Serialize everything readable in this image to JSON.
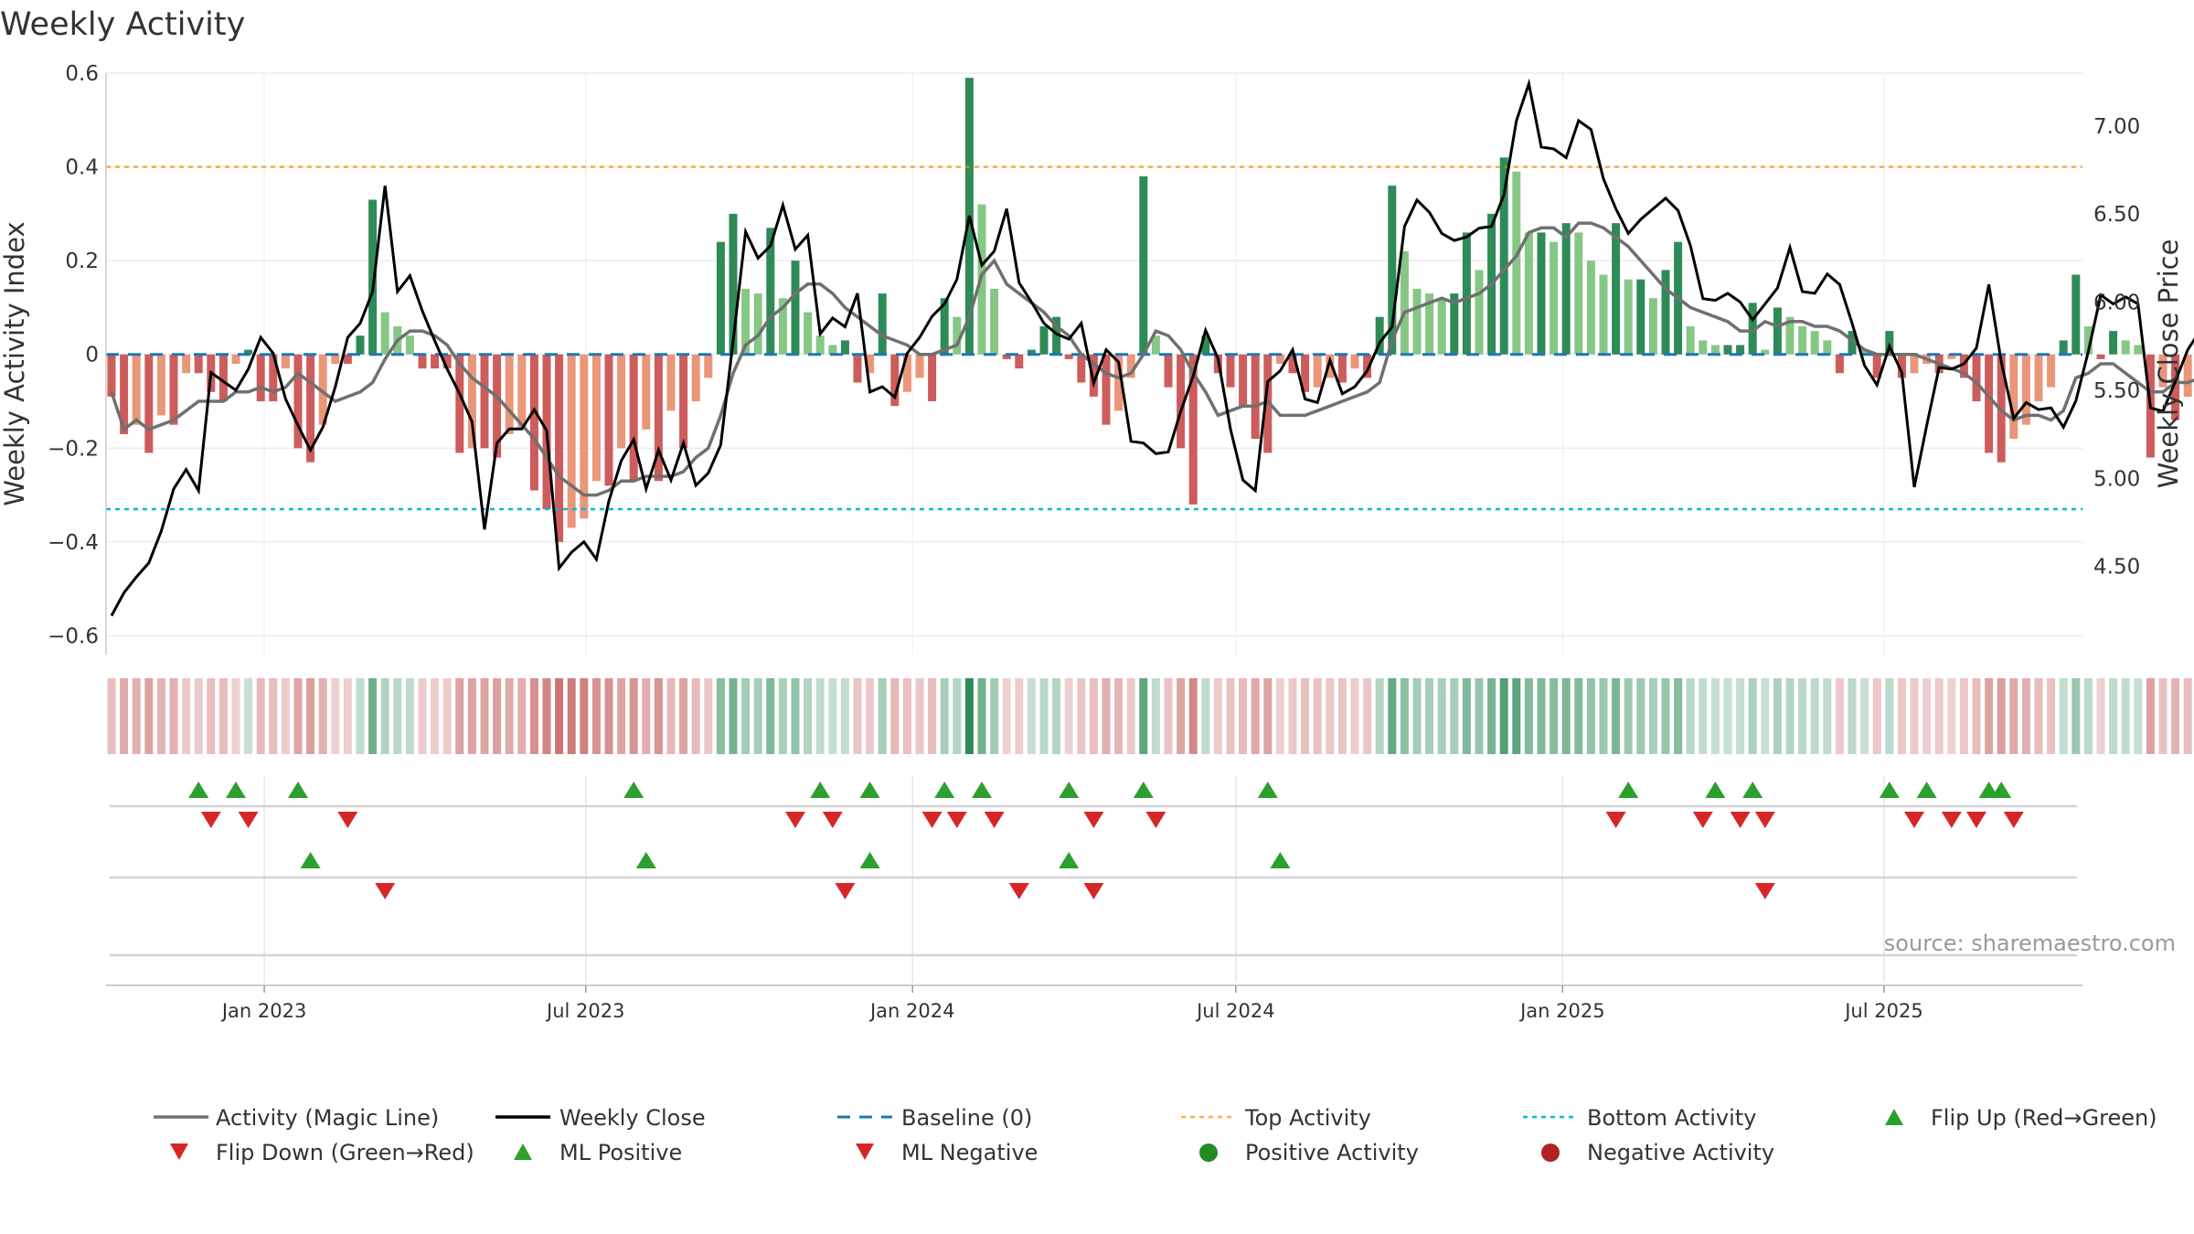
{
  "chart_data": {
    "type": "bar",
    "title": "Weekly Activity",
    "ylabel": "Weekly Activity Index",
    "y2label": "Weekly Close Price",
    "source": "source: sharemaestro.com",
    "ylim": [
      -0.64,
      0.6
    ],
    "y_ticks": [
      "0.6",
      "0.4",
      "0.2",
      "0",
      "−0.2",
      "−0.4",
      "−0.6"
    ],
    "y_tick_values": [
      0.6,
      0.4,
      0.2,
      0,
      -0.2,
      -0.4,
      -0.6
    ],
    "y2lim": [
      4.0,
      7.3
    ],
    "y2_ticks": [
      "7.00",
      "6.50",
      "6.00",
      "5.50",
      "5.00",
      "4.50"
    ],
    "y2_tick_values": [
      7.0,
      6.5,
      6.0,
      5.5,
      5.0,
      4.5
    ],
    "x_start": "2022-10-07",
    "x_tick_labels": [
      "Jan 2023",
      "Jul 2023",
      "Jan 2024",
      "Jul 2024",
      "Jan 2025",
      "Jul 2025"
    ],
    "x_tick_dates": [
      "2023-01-01",
      "2023-07-01",
      "2024-01-01",
      "2024-07-01",
      "2025-01-01",
      "2025-07-01"
    ],
    "top_activity": 0.4,
    "bottom_activity": -0.33,
    "grid": true,
    "colors": {
      "strong_pos": "#2e8b57",
      "weak_pos": "#86c786",
      "strong_neg": "#cd5c5c",
      "weak_neg": "#e9967a",
      "close_line": "#000000",
      "magic_line": "#707070",
      "baseline": "#1f77b4",
      "top": "#ff8c00",
      "bottom": "#00bcd4",
      "flip_up": "#2ca02c",
      "flip_down": "#d62728",
      "pos_dot": "#228b22",
      "neg_dot": "#b22222"
    },
    "activity": [
      -0.09,
      -0.17,
      -0.15,
      -0.21,
      -0.13,
      -0.15,
      -0.04,
      -0.04,
      -0.08,
      -0.1,
      -0.02,
      0.01,
      -0.1,
      -0.1,
      -0.03,
      -0.2,
      -0.23,
      -0.15,
      -0.02,
      -0.02,
      0.04,
      0.33,
      0.09,
      0.06,
      0.04,
      -0.03,
      -0.03,
      -0.03,
      -0.21,
      -0.2,
      -0.2,
      -0.22,
      -0.17,
      -0.16,
      -0.29,
      -0.33,
      -0.4,
      -0.37,
      -0.35,
      -0.27,
      -0.28,
      -0.2,
      -0.27,
      -0.16,
      -0.27,
      -0.12,
      -0.2,
      -0.1,
      -0.05,
      0.24,
      0.3,
      0.14,
      0.13,
      0.27,
      0.12,
      0.2,
      0.09,
      0.04,
      0.02,
      0.03,
      -0.06,
      -0.04,
      0.13,
      -0.11,
      -0.08,
      -0.05,
      -0.1,
      0.12,
      0.08,
      0.59,
      0.32,
      0.14,
      -0.01,
      -0.03,
      0.01,
      0.06,
      0.08,
      -0.01,
      -0.06,
      -0.09,
      -0.15,
      -0.12,
      -0.05,
      0.38,
      0.04,
      -0.07,
      -0.2,
      -0.32,
      0.04,
      -0.04,
      -0.07,
      -0.11,
      -0.18,
      -0.21,
      -0.02,
      -0.04,
      -0.08,
      -0.07,
      -0.05,
      -0.06,
      -0.03,
      -0.05,
      0.08,
      0.36,
      0.22,
      0.14,
      0.13,
      0.12,
      0.13,
      0.26,
      0.18,
      0.3,
      0.42,
      0.39,
      0.26,
      0.26,
      0.24,
      0.28,
      0.26,
      0.2,
      0.17,
      0.28,
      0.16,
      0.16,
      0.12,
      0.18,
      0.24,
      0.06,
      0.03,
      0.02,
      0.02,
      0.02,
      0.11,
      0.01,
      0.1,
      0.08,
      0.06,
      0.05,
      0.03,
      -0.04,
      0.05,
      0.01,
      -0.05,
      0.05,
      -0.05,
      -0.04,
      -0.02,
      -0.04,
      -0.01,
      -0.05,
      -0.1,
      -0.21,
      -0.23,
      -0.18,
      -0.15,
      -0.1,
      -0.07,
      0.03,
      0.17,
      0.06,
      -0.01,
      0.05,
      0.03,
      0.02,
      -0.22,
      -0.07,
      -0.14,
      -0.09,
      -0.05,
      0.03,
      -0.02,
      0.03,
      -0.02,
      -0.01
    ],
    "magic_line": [
      -0.08,
      -0.16,
      -0.14,
      -0.16,
      -0.15,
      -0.14,
      -0.12,
      -0.1,
      -0.1,
      -0.1,
      -0.08,
      -0.08,
      -0.07,
      -0.08,
      -0.07,
      -0.04,
      -0.06,
      -0.08,
      -0.1,
      -0.09,
      -0.08,
      -0.06,
      -0.01,
      0.03,
      0.05,
      0.05,
      0.04,
      0.02,
      -0.02,
      -0.05,
      -0.07,
      -0.09,
      -0.12,
      -0.15,
      -0.18,
      -0.22,
      -0.26,
      -0.28,
      -0.3,
      -0.3,
      -0.29,
      -0.27,
      -0.27,
      -0.26,
      -0.26,
      -0.26,
      -0.25,
      -0.22,
      -0.2,
      -0.13,
      -0.04,
      0.02,
      0.04,
      0.08,
      0.1,
      0.13,
      0.15,
      0.15,
      0.13,
      0.1,
      0.08,
      0.06,
      0.04,
      0.03,
      0.02,
      0.0,
      0.0,
      0.01,
      0.02,
      0.08,
      0.17,
      0.2,
      0.15,
      0.13,
      0.11,
      0.09,
      0.06,
      0.04,
      0.0,
      -0.02,
      -0.04,
      -0.05,
      -0.04,
      0.0,
      0.05,
      0.04,
      0.01,
      -0.04,
      -0.08,
      -0.13,
      -0.12,
      -0.11,
      -0.11,
      -0.1,
      -0.13,
      -0.13,
      -0.13,
      -0.12,
      -0.11,
      -0.1,
      -0.09,
      -0.08,
      -0.06,
      0.03,
      0.09,
      0.1,
      0.11,
      0.12,
      0.11,
      0.12,
      0.13,
      0.15,
      0.18,
      0.21,
      0.26,
      0.27,
      0.27,
      0.25,
      0.28,
      0.28,
      0.27,
      0.25,
      0.23,
      0.2,
      0.17,
      0.14,
      0.12,
      0.1,
      0.09,
      0.08,
      0.07,
      0.05,
      0.05,
      0.07,
      0.06,
      0.07,
      0.07,
      0.06,
      0.06,
      0.05,
      0.03,
      0.01,
      0.0,
      0.0,
      0.0,
      0.0,
      -0.01,
      -0.02,
      -0.03,
      -0.04,
      -0.06,
      -0.09,
      -0.12,
      -0.14,
      -0.13,
      -0.13,
      -0.14,
      -0.12,
      -0.05,
      -0.04,
      -0.02,
      -0.02,
      -0.04,
      -0.06,
      -0.08,
      -0.08,
      -0.06,
      -0.06,
      -0.05,
      -0.03,
      -0.03,
      -0.03
    ],
    "weekly_close": [
      4.22,
      4.35,
      4.44,
      4.52,
      4.7,
      4.94,
      5.05,
      4.93,
      5.6,
      5.55,
      5.5,
      5.62,
      5.8,
      5.71,
      5.45,
      5.3,
      5.16,
      5.29,
      5.52,
      5.8,
      5.88,
      6.06,
      6.66,
      6.06,
      6.15,
      5.95,
      5.78,
      5.62,
      5.48,
      5.32,
      4.71,
      5.2,
      5.28,
      5.28,
      5.39,
      5.27,
      4.49,
      4.58,
      4.64,
      4.54,
      4.87,
      5.1,
      5.22,
      4.94,
      5.16,
      4.99,
      5.2,
      4.96,
      5.03,
      5.19,
      5.78,
      6.4,
      6.25,
      6.32,
      6.55,
      6.3,
      6.38,
      5.82,
      5.91,
      5.86,
      6.05,
      5.49,
      5.52,
      5.46,
      5.71,
      5.8,
      5.92,
      5.99,
      6.13,
      6.49,
      6.21,
      6.29,
      6.53,
      6.11,
      6.0,
      5.88,
      5.82,
      5.79,
      5.88,
      5.54,
      5.73,
      5.66,
      5.21,
      5.2,
      5.14,
      5.15,
      5.38,
      5.58,
      5.84,
      5.68,
      5.28,
      4.99,
      4.93,
      5.55,
      5.61,
      5.73,
      5.45,
      5.43,
      5.67,
      5.48,
      5.52,
      5.61,
      5.77,
      5.86,
      6.43,
      6.58,
      6.51,
      6.39,
      6.35,
      6.37,
      6.42,
      6.43,
      6.61,
      7.03,
      7.24,
      6.88,
      6.87,
      6.82,
      7.03,
      6.98,
      6.7,
      6.53,
      6.39,
      6.47,
      6.53,
      6.59,
      6.52,
      6.32,
      6.02,
      6.01,
      6.05,
      6.0,
      5.9,
      5.99,
      6.08,
      6.31,
      6.06,
      6.05,
      6.16,
      6.1,
      5.88,
      5.64,
      5.53,
      5.75,
      5.6,
      4.95,
      5.3,
      5.63,
      5.62,
      5.65,
      5.74,
      6.1,
      5.66,
      5.34,
      5.43,
      5.39,
      5.4,
      5.29,
      5.44,
      5.72,
      6.04,
      5.99,
      6.03,
      5.99,
      5.4,
      5.38,
      5.55,
      5.73,
      5.84,
      5.9,
      5.97,
      6.21,
      6.17,
      6.05
    ],
    "flip_up_row1": [
      7,
      10,
      15,
      42,
      57,
      61,
      67,
      70,
      77,
      83,
      93,
      122,
      129,
      132,
      143,
      146,
      151,
      152
    ],
    "flip_down_row1": [
      8,
      11,
      19,
      55,
      58,
      66,
      68,
      71,
      79,
      84,
      121,
      128,
      131,
      133,
      145,
      148,
      150,
      153
    ],
    "ml_positive": [
      16,
      43,
      61,
      77,
      94
    ],
    "ml_negative": [
      22,
      59,
      73,
      79,
      133
    ]
  }
}
